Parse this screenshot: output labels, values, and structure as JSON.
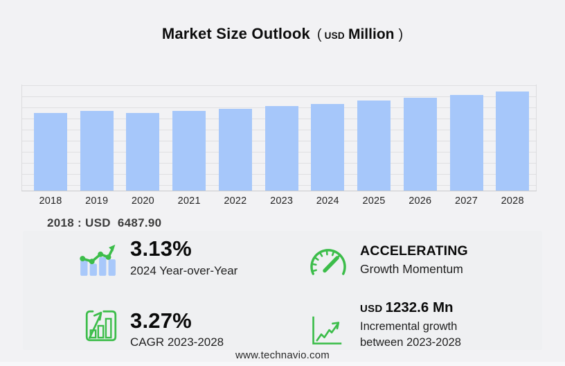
{
  "title": {
    "main": "Market Size Outlook",
    "paren_open": "(",
    "unit_currency": "USD",
    "unit_word": "Million",
    "paren_close": ")"
  },
  "chart_data": {
    "type": "bar",
    "title": "Market Size Outlook (USD Million)",
    "unit": "USD Million",
    "categories": [
      "2018",
      "2019",
      "2020",
      "2021",
      "2022",
      "2023",
      "2024",
      "2025",
      "2026",
      "2027",
      "2028"
    ],
    "values": [
      6487.9,
      6679.8,
      6529.3,
      6662.4,
      6836.5,
      7060.8,
      7281.8,
      7522.1,
      7770.3,
      8026.7,
      8293.4
    ],
    "ylim": [
      0,
      9580
    ],
    "grid": "horizontal",
    "legend": "none",
    "y_axis_labels": "hidden",
    "bar_color": "#a6c7fa",
    "annotation": "2018 : USD  6487.90"
  },
  "stats": {
    "yoy": {
      "icon": "trend-bars-icon",
      "value": "3.13%",
      "label": "2024 Year-over-Year"
    },
    "momentum": {
      "icon": "gauge-icon",
      "value": "ACCELERATING",
      "label": "Growth Momentum"
    },
    "cagr": {
      "icon": "growth-bars-icon",
      "value": "3.27%",
      "label": "CAGR 2023-2028"
    },
    "incremental": {
      "icon": "line-growth-icon",
      "currency": "USD",
      "amount": "1232.6 Mn",
      "label_line1": "Incremental growth",
      "label_line2": "between 2023-2028"
    }
  },
  "footer": {
    "url": "www.technavio.com"
  },
  "colors": {
    "bar_blue": "#a6c7fa",
    "accent_green": "#3cbd4a",
    "background": "#f2f2f4",
    "panel": "#eff0f2",
    "gridline": "#dfdfe1",
    "axis": "#c9c9cb"
  }
}
